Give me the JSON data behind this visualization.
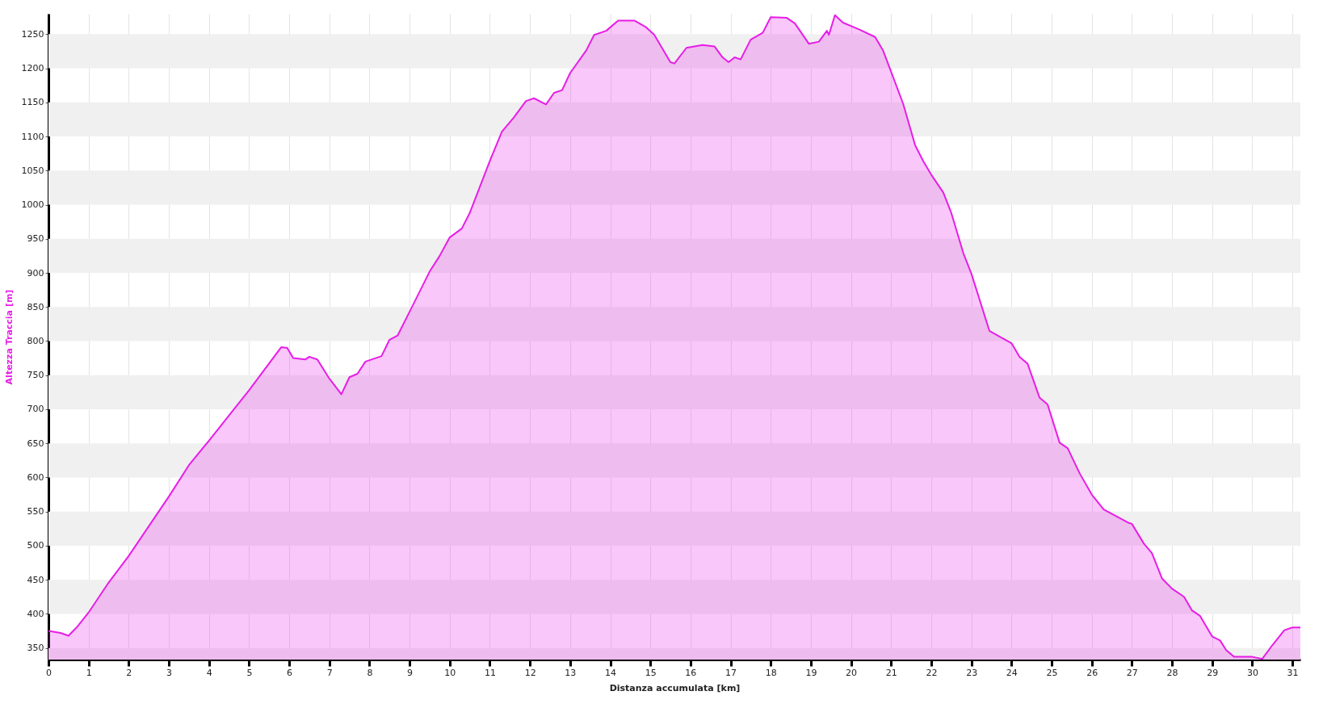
{
  "chart_data": {
    "type": "area",
    "xlabel": "Distanza accumulata [km]",
    "ylabel": "Altezza Traccia [m]",
    "xlim": [
      0,
      31.2
    ],
    "xticks": [
      0,
      1,
      2,
      3,
      4,
      5,
      6,
      7,
      8,
      9,
      10,
      11,
      12,
      13,
      14,
      15,
      16,
      17,
      18,
      19,
      20,
      21,
      22,
      23,
      24,
      25,
      26,
      27,
      28,
      29,
      30,
      31
    ],
    "ylim": [
      333,
      1280
    ],
    "yticks": [
      350,
      400,
      450,
      500,
      550,
      600,
      650,
      700,
      750,
      800,
      850,
      900,
      950,
      1000,
      1050,
      1100,
      1150,
      1200,
      1250
    ],
    "grid": true,
    "line_style": "solid",
    "series": [
      {
        "color": "#e61ee6",
        "x": [
          0,
          0.3,
          0.5,
          0.7,
          1,
          1.5,
          2,
          3,
          3.5,
          4,
          5,
          5.8,
          5.95,
          6.1,
          6.4,
          6.5,
          6.7,
          7,
          7.3,
          7.5,
          7.7,
          7.9,
          8.3,
          8.5,
          8.7,
          9,
          9.5,
          9.75,
          10,
          10.3,
          10.5,
          11,
          11.3,
          11.6,
          11.9,
          12.1,
          12.4,
          12.6,
          12.8,
          13,
          13.4,
          13.6,
          13.9,
          14.2,
          14.6,
          14.9,
          15.1,
          15.5,
          15.6,
          15.9,
          16.3,
          16.6,
          16.8,
          16.95,
          17.1,
          17.25,
          17.5,
          17.8,
          18,
          18.4,
          18.6,
          18.95,
          19.2,
          19.4,
          19.45,
          19.6,
          19.8,
          20.2,
          20.6,
          20.8,
          21,
          21.3,
          21.6,
          21.8,
          22,
          22.3,
          22.5,
          22.8,
          23,
          23.45,
          24,
          24.2,
          24.4,
          24.7,
          24.9,
          25.2,
          25.4,
          25.7,
          26,
          26.3,
          26.9,
          27,
          27.3,
          27.5,
          27.75,
          28,
          28.3,
          28.5,
          28.7,
          29,
          29.2,
          29.35,
          29.55,
          30,
          30.25,
          30.5,
          30.8,
          31,
          31.2
        ],
        "values": [
          375,
          372,
          368,
          380,
          402,
          446,
          485,
          572,
          618,
          654,
          728,
          791,
          790,
          775,
          773,
          777,
          773,
          745,
          722,
          747,
          752,
          770,
          778,
          802,
          808,
          843,
          902,
          925,
          952,
          965,
          988,
          1064,
          1107,
          1128,
          1152,
          1156,
          1147,
          1164,
          1168,
          1193,
          1226,
          1249,
          1255,
          1270,
          1270,
          1260,
          1249,
          1209,
          1207,
          1230,
          1234,
          1232,
          1216,
          1209,
          1216,
          1213,
          1242,
          1252,
          1275,
          1274,
          1266,
          1236,
          1239,
          1255,
          1249,
          1278,
          1267,
          1257,
          1246,
          1226,
          1195,
          1148,
          1087,
          1064,
          1044,
          1018,
          988,
          929,
          899,
          815,
          797,
          777,
          767,
          717,
          707,
          651,
          643,
          606,
          575,
          553,
          534,
          532,
          503,
          489,
          452,
          437,
          425,
          405,
          397,
          367,
          361,
          347,
          337,
          337,
          334,
          354,
          376,
          380,
          380
        ]
      }
    ]
  }
}
